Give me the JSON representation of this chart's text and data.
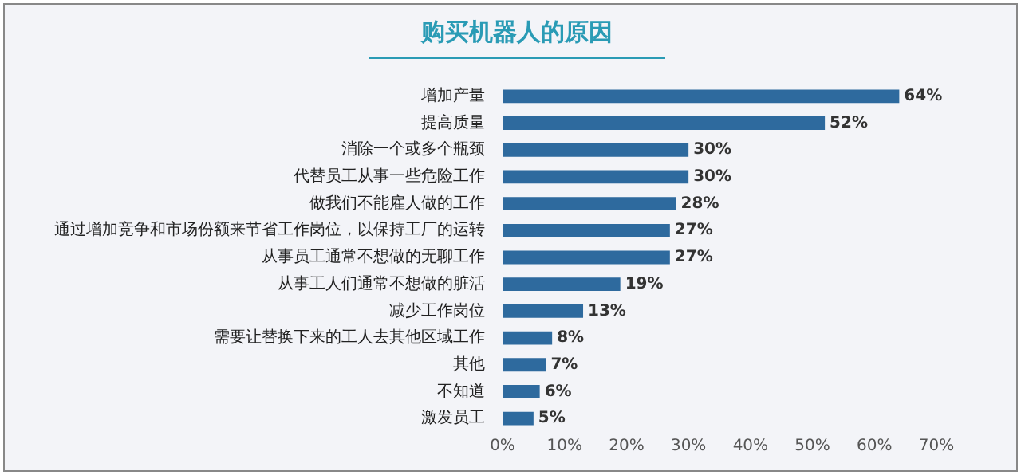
{
  "chart_data": {
    "type": "bar",
    "orientation": "horizontal",
    "title": "购买机器人的原因",
    "categories": [
      "增加产量",
      "提高质量",
      "消除一个或多个瓶颈",
      "代替员工从事一些危险工作",
      "做我们不能雇人做的工作",
      "通过增加竞争和市场份额来节省工作岗位，以保持工厂的运转",
      "从事员工通常不想做的无聊工作",
      "从事工人们通常不想做的脏活",
      "减少工作岗位",
      "需要让替换下来的工人去其他区域工作",
      "其他",
      "不知道",
      "激发员工"
    ],
    "values": [
      64,
      52,
      30,
      30,
      28,
      27,
      27,
      19,
      13,
      8,
      7,
      6,
      5
    ],
    "value_labels": [
      "64%",
      "52%",
      "30%",
      "30%",
      "28%",
      "27%",
      "27%",
      "19%",
      "13%",
      "8%",
      "7%",
      "6%",
      "5%"
    ],
    "color": "#2e6a9e",
    "xlim": [
      0,
      70
    ],
    "xticks": [
      {
        "value": 0,
        "label": "0%"
      },
      {
        "value": 10,
        "label": "10%"
      },
      {
        "value": 20,
        "label": "20%"
      },
      {
        "value": 30,
        "label": "30%"
      },
      {
        "value": 40,
        "label": "40%"
      },
      {
        "value": 50,
        "label": "50%"
      },
      {
        "value": 60,
        "label": "60%"
      },
      {
        "value": 70,
        "label": "70%"
      }
    ],
    "grid": false,
    "legend": false
  }
}
